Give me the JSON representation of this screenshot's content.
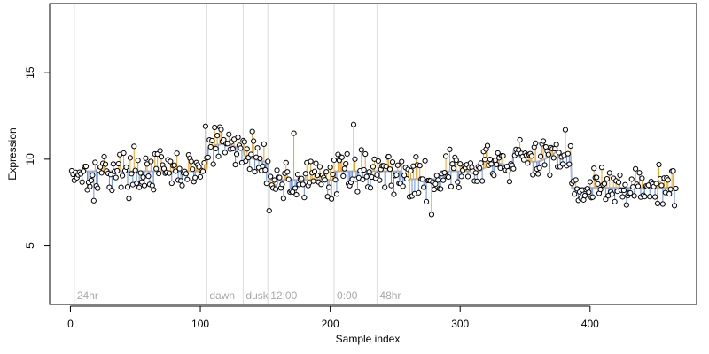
{
  "chart_data": {
    "type": "scatter",
    "title": "",
    "xlabel": "Sample index",
    "ylabel": "Expression",
    "xlim": [
      -16,
      482
    ],
    "ylim": [
      1.6,
      19.0
    ],
    "x_ticks": [
      0,
      100,
      200,
      300,
      400
    ],
    "y_ticks": [
      5,
      10,
      15
    ],
    "grid": false,
    "legend": "none",
    "colors": {
      "point_fill": "#ffffff",
      "point_stroke": "#000000",
      "above_segment": "#f2a21d",
      "below_segment": "#6a8fe0",
      "fitted_line": "#a9b7d8",
      "marker_line": "#dcdcdc",
      "marker_label": "#a8a8a8",
      "axis": "#000000"
    },
    "markers": [
      {
        "x": 3,
        "label": "24hr"
      },
      {
        "x": 105,
        "label": "dawn"
      },
      {
        "x": 133,
        "label": "dusk"
      },
      {
        "x": 152,
        "label": "12:00"
      },
      {
        "x": 203,
        "label": "0:00"
      },
      {
        "x": 236,
        "label": "48hr"
      }
    ],
    "segments": [
      {
        "start": 1,
        "end": 105,
        "level": 9.3
      },
      {
        "start": 105,
        "end": 133,
        "level": 10.5
      },
      {
        "start": 133,
        "end": 152,
        "level": 10.2
      },
      {
        "start": 152,
        "end": 203,
        "level": 8.8
      },
      {
        "start": 203,
        "end": 236,
        "level": 9.3
      },
      {
        "start": 236,
        "end": 340,
        "level": 9.3
      },
      {
        "start": 340,
        "end": 385,
        "level": 10.3
      },
      {
        "start": 385,
        "end": 466,
        "level": 8.5
      }
    ],
    "series": [
      {
        "n": 466,
        "pattern": "noisy expression values around the fitted level"
      }
    ]
  }
}
